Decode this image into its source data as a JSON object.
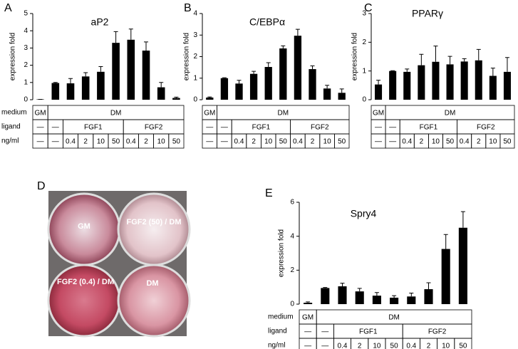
{
  "chart_data": [
    {
      "type": "bar",
      "panel": "A",
      "title": "aP2",
      "y_label": "expression fold",
      "color": "#000000",
      "values": [
        0.02,
        0.97,
        0.95,
        1.35,
        1.62,
        3.3,
        3.48,
        2.85,
        0.72,
        0.1
      ],
      "errors": [
        0,
        0.03,
        0.28,
        0.22,
        0.3,
        0.65,
        0.62,
        0.5,
        0.28,
        0.05
      ],
      "ylim": [
        0,
        5
      ],
      "yticks": [
        0,
        1,
        2,
        3,
        4,
        5
      ],
      "table": {
        "row_labels": [
          "medium",
          "ligand",
          "ng/ml"
        ],
        "rows": [
          [
            "GM",
            "DM"
          ],
          [
            "—",
            "—",
            "FGF1",
            "FGF2"
          ],
          [
            "—",
            "—",
            "0.4",
            "2",
            "10",
            "50",
            "0.4",
            "2",
            "10",
            "50"
          ]
        ]
      }
    },
    {
      "type": "bar",
      "panel": "B",
      "title": "C/EBPα",
      "y_label": "expression fold",
      "color": "#000000",
      "values": [
        0.1,
        1.0,
        0.75,
        1.2,
        1.52,
        2.38,
        2.97,
        1.42,
        0.52,
        0.32
      ],
      "errors": [
        0.03,
        0.02,
        0.15,
        0.12,
        0.2,
        0.12,
        0.3,
        0.15,
        0.15,
        0.18
      ],
      "ylim": [
        0,
        4
      ],
      "yticks": [
        0,
        1,
        2,
        3,
        4
      ],
      "table": {
        "rows": [
          [
            "GM",
            "DM"
          ],
          [
            "—",
            "—",
            "FGF1",
            "FGF2"
          ],
          [
            "—",
            "—",
            "0.4",
            "2",
            "10",
            "50",
            "0.4",
            "2",
            "10",
            "50"
          ]
        ]
      }
    },
    {
      "type": "bar",
      "panel": "C",
      "title": "PPARγ",
      "y_label": "expression fold",
      "color": "#000000",
      "values": [
        0.53,
        1.0,
        0.97,
        1.2,
        1.32,
        1.23,
        1.33,
        1.37,
        0.83,
        0.97
      ],
      "errors": [
        0.15,
        0.01,
        0.1,
        0.38,
        0.55,
        0.28,
        0.1,
        0.38,
        0.27,
        0.5
      ],
      "ylim": [
        0,
        3
      ],
      "yticks": [
        0,
        1,
        2,
        3
      ],
      "table": {
        "rows": [
          [
            "GM",
            "DM"
          ],
          [
            "—",
            "—",
            "FGF1",
            "FGF2"
          ],
          [
            "—",
            "—",
            "0.4",
            "2",
            "10",
            "50",
            "0.4",
            "2",
            "10",
            "50"
          ]
        ]
      }
    },
    {
      "type": "bar",
      "panel": "E",
      "title": "Spry4",
      "y_label": "expression fold",
      "color": "#000000",
      "values": [
        0.08,
        0.95,
        1.05,
        0.75,
        0.5,
        0.38,
        0.45,
        0.88,
        3.25,
        4.5
      ],
      "errors": [
        0.05,
        0.03,
        0.18,
        0.18,
        0.18,
        0.12,
        0.2,
        0.38,
        0.85,
        0.95
      ],
      "ylim": [
        0,
        6
      ],
      "yticks": [
        0,
        2,
        4,
        6
      ],
      "table": {
        "row_labels": [
          "medium",
          "ligand",
          "ng/ml"
        ],
        "rows": [
          [
            "GM",
            "DM"
          ],
          [
            "—",
            "—",
            "FGF1",
            "FGF2"
          ],
          [
            "—",
            "—",
            "0.4",
            "2",
            "10",
            "50",
            "0.4",
            "2",
            "10",
            "50"
          ]
        ]
      }
    }
  ],
  "photo": {
    "panel": "D",
    "wells": [
      "GM",
      "FGF2 (50) / DM",
      "FGF2 (0.4) / DM",
      "DM"
    ]
  }
}
